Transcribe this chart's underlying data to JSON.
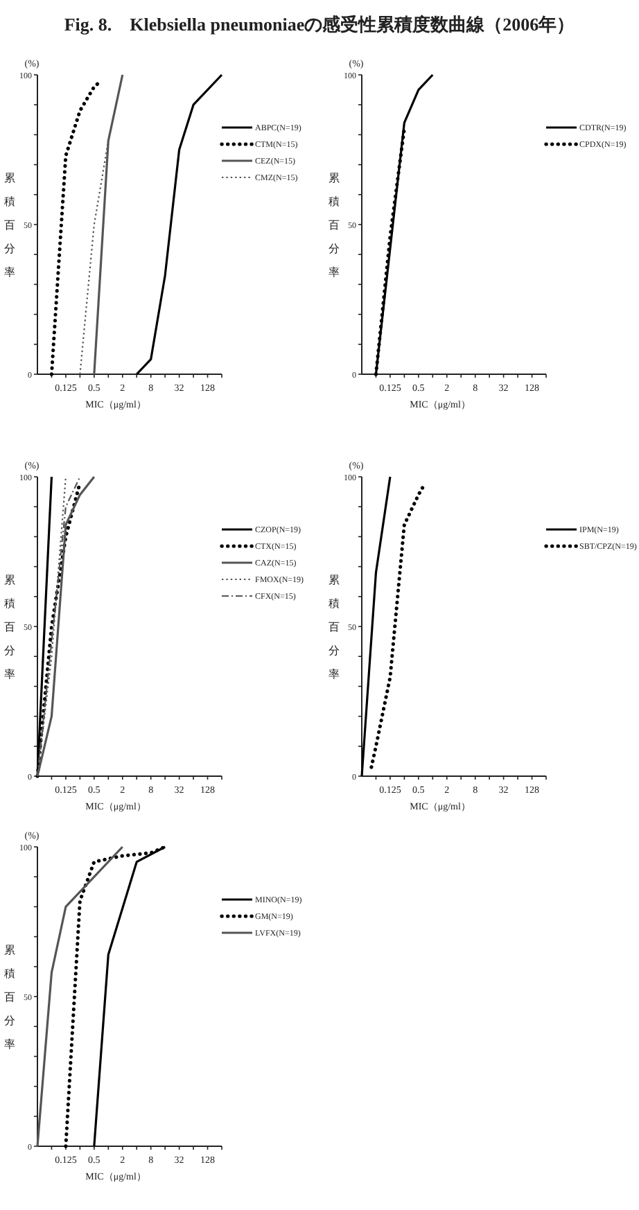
{
  "chart_data": [
    {
      "type": "line",
      "title": "Fig. 8.　Klebsiella pneumoniaeの感受性累積度数曲線（2006年）",
      "xlabel": "MIC（μg/ml）",
      "ylabel": "累積百分率",
      "annotations": [
        "(%)"
      ],
      "log": "x",
      "legend": "right",
      "xlim": [
        0.03125,
        256
      ],
      "ylim": [
        0,
        100
      ],
      "xticks": [
        {
          "value": 0.0625,
          "label": null
        },
        0.125,
        {
          "value": 0.25,
          "label": null
        },
        0.5,
        {
          "value": 1,
          "label": null
        },
        2,
        {
          "value": 4,
          "label": null
        },
        8,
        {
          "value": 16,
          "label": null
        },
        32,
        {
          "value": 64,
          "label": null
        },
        128,
        {
          "value": 256,
          "label": null
        }
      ],
      "yticks": [
        0,
        {
          "value": 10,
          "label": null
        },
        {
          "value": 20,
          "label": null
        },
        {
          "value": 30,
          "label": null
        },
        {
          "value": 40,
          "label": null
        },
        50,
        {
          "value": 60,
          "label": null
        },
        {
          "value": 70,
          "label": null
        },
        {
          "value": 80,
          "label": null
        },
        {
          "value": 90,
          "label": null
        },
        100
      ],
      "series": [
        {
          "name": "ABPC(N=19)",
          "color": "#000000",
          "line_style": "solid",
          "x": [
            4,
            8,
            16,
            32,
            64,
            256
          ],
          "values": [
            0,
            5,
            33,
            75,
            90,
            100
          ]
        },
        {
          "name": "CTM(N=15)",
          "color": "#000000",
          "line_style": "dotted",
          "x": [
            0.0625,
            0.125,
            0.25,
            0.5,
            0.7
          ],
          "values": [
            0,
            73,
            88,
            96,
            98
          ]
        },
        {
          "name": "CEZ(N=15)",
          "color": "#555555",
          "line_style": "solid",
          "x": [
            0.5,
            1,
            2
          ],
          "values": [
            0,
            78,
            100
          ]
        },
        {
          "name": "CMZ(N=15)",
          "color": "#555555",
          "line_style": "dashed",
          "x": [
            0.25,
            0.5,
            1
          ],
          "values": [
            0,
            50,
            78
          ]
        }
      ]
    },
    {
      "type": "line",
      "xlabel": "MIC（μg/ml）",
      "ylabel": "累積百分率",
      "annotations": [
        "(%)"
      ],
      "log": "x",
      "legend": "right",
      "xlim": [
        0.03125,
        256
      ],
      "ylim": [
        0,
        100
      ],
      "xticks": [
        {
          "value": 0.0625,
          "label": null
        },
        0.125,
        {
          "value": 0.25,
          "label": null
        },
        0.5,
        {
          "value": 1,
          "label": null
        },
        2,
        {
          "value": 4,
          "label": null
        },
        8,
        {
          "value": 16,
          "label": null
        },
        32,
        {
          "value": 64,
          "label": null
        },
        128,
        {
          "value": 256,
          "label": null
        }
      ],
      "yticks": [
        0,
        {
          "value": 10,
          "label": null
        },
        {
          "value": 20,
          "label": null
        },
        {
          "value": 30,
          "label": null
        },
        {
          "value": 40,
          "label": null
        },
        50,
        {
          "value": 60,
          "label": null
        },
        {
          "value": 70,
          "label": null
        },
        {
          "value": 80,
          "label": null
        },
        {
          "value": 90,
          "label": null
        },
        100
      ],
      "series": [
        {
          "name": "CDTR(N=19)",
          "color": "#000000",
          "line_style": "solid",
          "x": [
            0.0625,
            0.25,
            0.5,
            1
          ],
          "values": [
            0,
            84,
            95,
            100
          ]
        },
        {
          "name": "CPDX(N=19)",
          "color": "#000000",
          "line_style": "dotted",
          "x": [
            0.0625,
            0.125,
            0.25
          ],
          "values": [
            0,
            46,
            82
          ]
        }
      ]
    },
    {
      "type": "line",
      "xlabel": "MIC（μg/ml）",
      "ylabel": "累積百分率",
      "annotations": [
        "(%)"
      ],
      "log": "x",
      "legend": "right",
      "xlim": [
        0.03125,
        256
      ],
      "ylim": [
        0,
        100
      ],
      "xticks": [
        {
          "value": 0.0625,
          "label": null
        },
        0.125,
        {
          "value": 0.25,
          "label": null
        },
        0.5,
        {
          "value": 1,
          "label": null
        },
        2,
        {
          "value": 4,
          "label": null
        },
        8,
        {
          "value": 16,
          "label": null
        },
        32,
        {
          "value": 64,
          "label": null
        },
        128,
        {
          "value": 256,
          "label": null
        }
      ],
      "yticks": [
        0,
        {
          "value": 10,
          "label": null
        },
        {
          "value": 20,
          "label": null
        },
        {
          "value": 30,
          "label": null
        },
        {
          "value": 40,
          "label": null
        },
        50,
        {
          "value": 60,
          "label": null
        },
        {
          "value": 70,
          "label": null
        },
        {
          "value": 80,
          "label": null
        },
        {
          "value": 90,
          "label": null
        },
        100
      ],
      "series": [
        {
          "name": "CZOP(N=19)",
          "color": "#000000",
          "line_style": "solid",
          "x": [
            0.03125,
            0.0625
          ],
          "values": [
            0,
            100
          ]
        },
        {
          "name": "CTX(N=15)",
          "color": "#000000",
          "line_style": "dotted",
          "x": [
            0.03125,
            0.0625,
            0.125,
            0.25
          ],
          "values": [
            0,
            50,
            80,
            98
          ]
        },
        {
          "name": "CAZ(N=15)",
          "color": "#555555",
          "line_style": "solid",
          "x": [
            0.03125,
            0.0625,
            0.125,
            0.25,
            0.5
          ],
          "values": [
            0,
            20,
            84,
            94,
            100
          ]
        },
        {
          "name": "FMOX(N=19)",
          "color": "#555555",
          "line_style": "dashed",
          "x": [
            0.03125,
            0.0625,
            0.125
          ],
          "values": [
            0,
            40,
            100
          ]
        },
        {
          "name": "CFX(N=15)",
          "color": "#555555",
          "line_style": "dashdot",
          "x": [
            0.03125,
            0.0625,
            0.125,
            0.25
          ],
          "values": [
            0,
            45,
            90,
            100
          ]
        }
      ]
    },
    {
      "type": "line",
      "xlabel": "MIC（μg/ml）",
      "ylabel": "累積百分率",
      "annotations": [
        "(%)"
      ],
      "log": "x",
      "legend": "right",
      "xlim": [
        0.03125,
        256
      ],
      "ylim": [
        0,
        100
      ],
      "xticks": [
        {
          "value": 0.0625,
          "label": null
        },
        0.125,
        {
          "value": 0.25,
          "label": null
        },
        0.5,
        {
          "value": 1,
          "label": null
        },
        2,
        {
          "value": 4,
          "label": null
        },
        8,
        {
          "value": 16,
          "label": null
        },
        32,
        {
          "value": 64,
          "label": null
        },
        128,
        {
          "value": 256,
          "label": null
        }
      ],
      "yticks": [
        0,
        {
          "value": 10,
          "label": null
        },
        {
          "value": 20,
          "label": null
        },
        {
          "value": 30,
          "label": null
        },
        {
          "value": 40,
          "label": null
        },
        50,
        {
          "value": 60,
          "label": null
        },
        {
          "value": 70,
          "label": null
        },
        {
          "value": 80,
          "label": null
        },
        {
          "value": 90,
          "label": null
        },
        100
      ],
      "series": [
        {
          "name": "IPM(N=19)",
          "color": "#000000",
          "line_style": "solid",
          "x": [
            0.03125,
            0.0625,
            0.125
          ],
          "values": [
            0,
            68,
            100
          ]
        },
        {
          "name": "SBT/CPZ(N=19)",
          "color": "#000000",
          "line_style": "dotted",
          "x": [
            0.05,
            0.0625,
            0.125,
            0.25,
            0.5,
            0.7
          ],
          "values": [
            3,
            10,
            33,
            84,
            94,
            98
          ]
        }
      ]
    },
    {
      "type": "line",
      "xlabel": "MIC（μg/ml）",
      "ylabel": "累積百分率",
      "annotations": [
        "(%)"
      ],
      "log": "x",
      "legend": "right",
      "xlim": [
        0.03125,
        256
      ],
      "ylim": [
        0,
        100
      ],
      "xticks": [
        {
          "value": 0.0625,
          "label": null
        },
        0.125,
        {
          "value": 0.25,
          "label": null
        },
        0.5,
        {
          "value": 1,
          "label": null
        },
        2,
        {
          "value": 4,
          "label": null
        },
        8,
        {
          "value": 16,
          "label": null
        },
        32,
        {
          "value": 64,
          "label": null
        },
        128,
        {
          "value": 256,
          "label": null
        }
      ],
      "yticks": [
        0,
        {
          "value": 10,
          "label": null
        },
        {
          "value": 20,
          "label": null
        },
        {
          "value": 30,
          "label": null
        },
        {
          "value": 40,
          "label": null
        },
        50,
        {
          "value": 60,
          "label": null
        },
        {
          "value": 70,
          "label": null
        },
        {
          "value": 80,
          "label": null
        },
        {
          "value": 90,
          "label": null
        },
        100
      ],
      "series": [
        {
          "name": "MINO(N=19)",
          "color": "#000000",
          "line_style": "solid",
          "x": [
            0.5,
            1,
            4,
            16
          ],
          "values": [
            0,
            64,
            95,
            100
          ]
        },
        {
          "name": "GM(N=19)",
          "color": "#000000",
          "line_style": "dotted",
          "x": [
            0.125,
            0.25,
            0.5,
            2,
            8,
            16
          ],
          "values": [
            0,
            82,
            95,
            97,
            98,
            100
          ]
        },
        {
          "name": "LVFX(N=19)",
          "color": "#555555",
          "line_style": "solid",
          "x": [
            0.03125,
            0.0625,
            0.125,
            2
          ],
          "values": [
            0,
            58,
            80,
            100
          ]
        }
      ]
    }
  ]
}
